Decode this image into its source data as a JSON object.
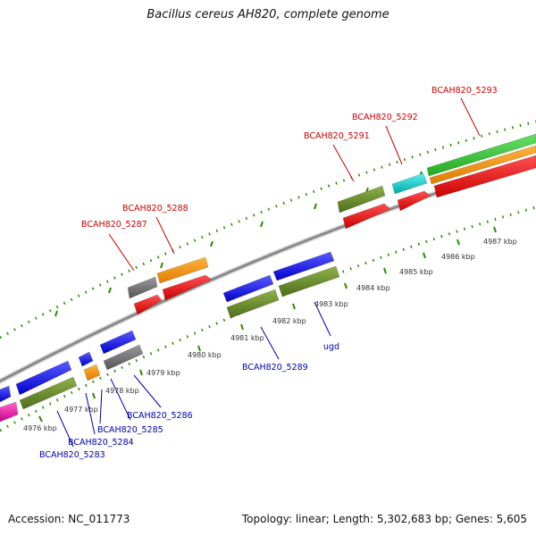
{
  "title": "Bacillus cereus AH820, complete genome",
  "footer": {
    "accession": "Accession: NC_011773",
    "summary": "Topology: linear; Length: 5,302,683 bp; Genes: 5,605"
  },
  "colors": {
    "forward_label": "#cc0000",
    "reverse_label": "#0000aa",
    "backbone": "#8a8a8a",
    "tick": "#2e8b00"
  },
  "scale_ticks": [
    "4976 kbp",
    "4977 kbp",
    "4978 kbp",
    "4979 kbp",
    "4980 kbp",
    "4981 kbp",
    "4982 kbp",
    "4983 kbp",
    "4984 kbp",
    "4985 kbp",
    "4986 kbp",
    "4987 kbp"
  ],
  "forward_genes": [
    "BCAH820_5287",
    "BCAH820_5288",
    "BCAH820_5291",
    "BCAH820_5292",
    "BCAH820_5293"
  ],
  "reverse_genes": [
    "BCAH820_5283",
    "BCAH820_5284",
    "BCAH820_5285",
    "BCAH820_5286",
    "BCAH820_5289",
    "ugd"
  ]
}
